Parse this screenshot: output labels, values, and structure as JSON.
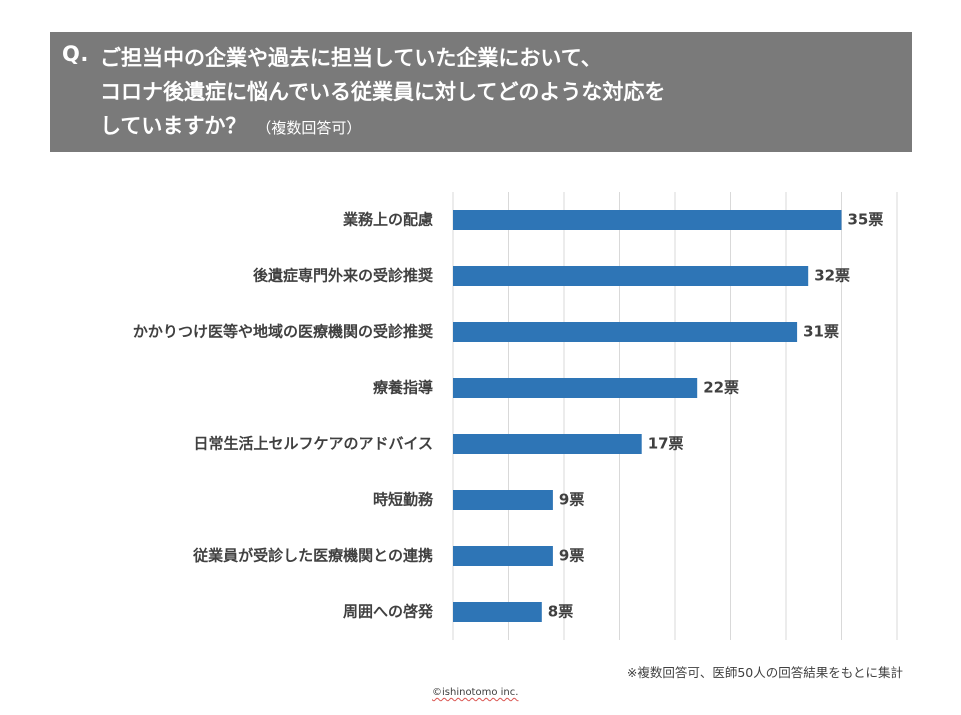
{
  "title": {
    "prefix": "Q.",
    "line1": "ご担当中の企業や過去に担当していた企業において、",
    "line2": "コロナ後遺症に悩んでいる従業員に対してどのような対応を",
    "line3": "していますか？",
    "note": "（複数回答可）"
  },
  "chart_data": {
    "type": "bar",
    "orientation": "horizontal",
    "categories": [
      "業務上の配慮",
      "後遺症専門外来の受診推奨",
      "かかりつけ医等や地域の医療機関の受診推奨",
      "療養指導",
      "日常生活上セルフケアのアドバイス",
      "時短勤務",
      "従業員が受診した医療機関との連携",
      "周囲への啓発"
    ],
    "values": [
      35,
      32,
      31,
      22,
      17,
      9,
      9,
      8
    ],
    "value_labels": [
      "35票",
      "32票",
      "31票",
      "22票",
      "17票",
      "9票",
      "9票",
      "8票"
    ],
    "xlim": [
      0,
      40
    ],
    "grid": true,
    "bar_color": "#2e75b6"
  },
  "footnote": "※複数回答可、医師50人の回答結果をもとに集計",
  "copyright": "©ishinotomo inc."
}
